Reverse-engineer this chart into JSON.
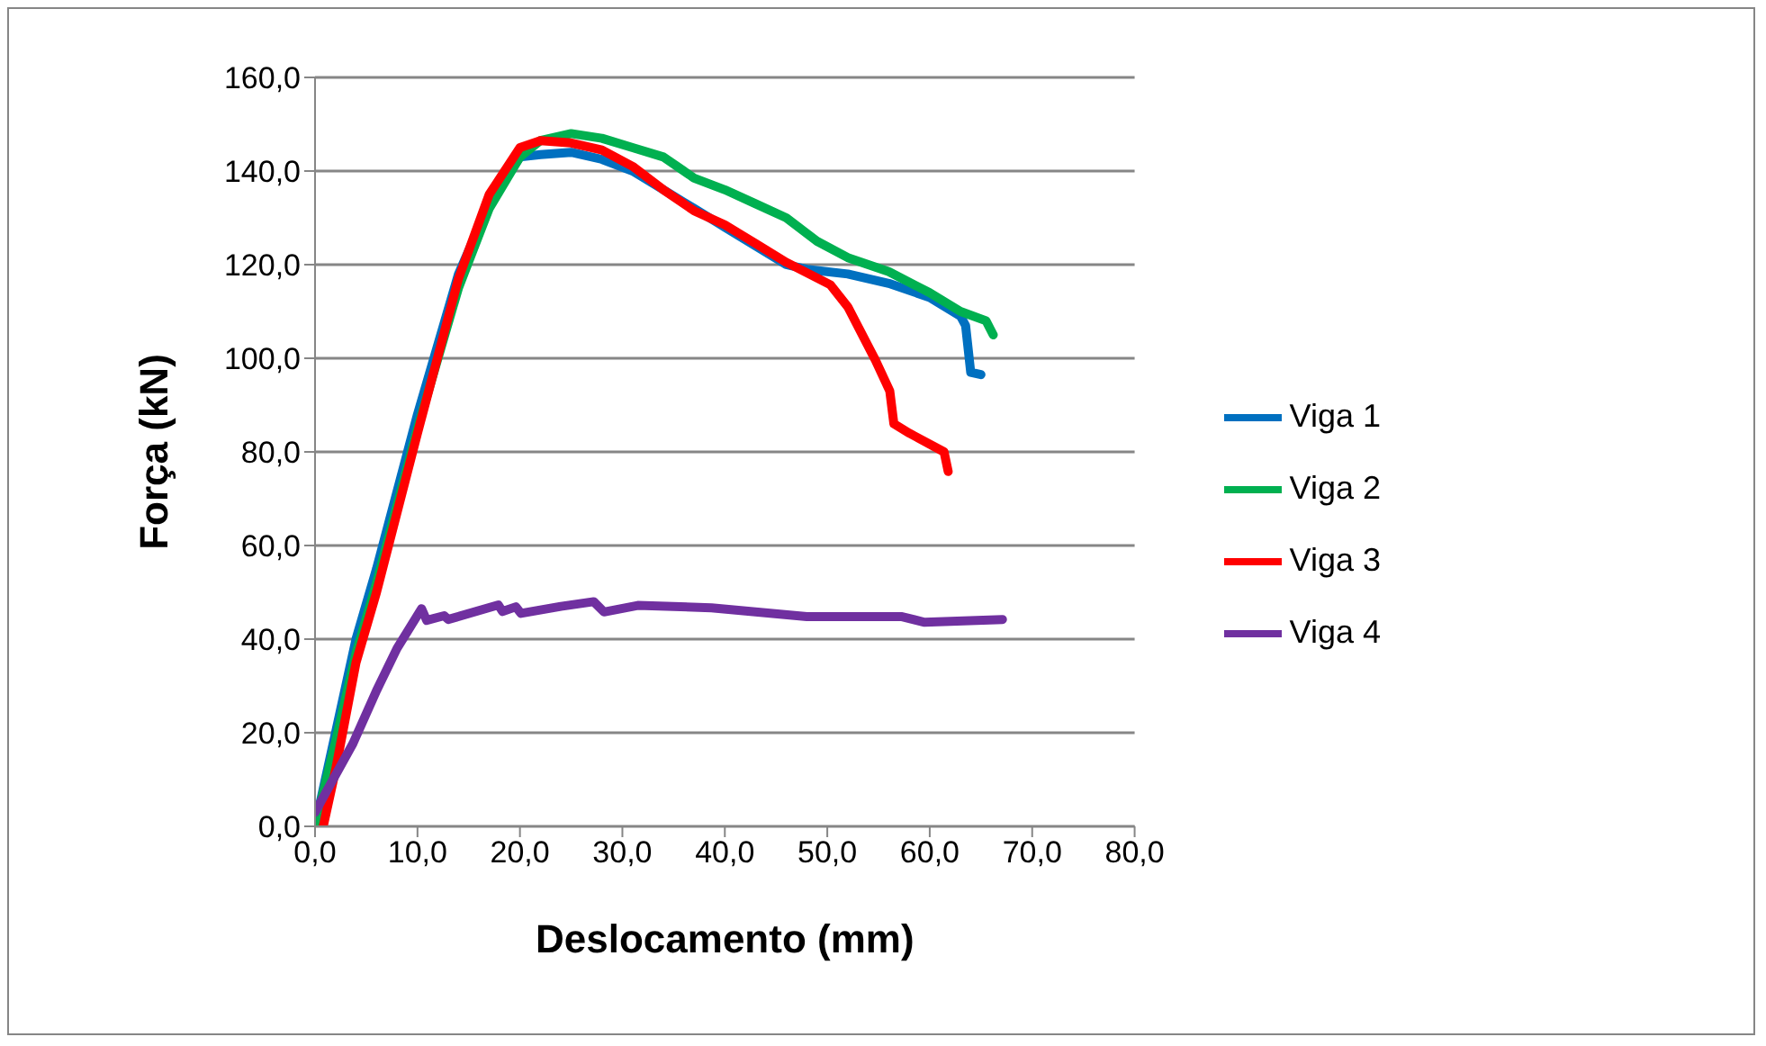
{
  "chart_data": {
    "type": "line",
    "xlabel": "Deslocamento (mm)",
    "ylabel": "Força (kN)",
    "xlim": [
      0,
      80
    ],
    "xticks": [
      {
        "value": 0,
        "label": "0,0"
      },
      {
        "value": 10,
        "label": "10,0"
      },
      {
        "value": 20,
        "label": "20,0"
      },
      {
        "value": 30,
        "label": "30,0"
      },
      {
        "value": 40,
        "label": "40,0"
      },
      {
        "value": 50,
        "label": "50,0"
      },
      {
        "value": 60,
        "label": "60,0"
      },
      {
        "value": 70,
        "label": "70,0"
      },
      {
        "value": 80,
        "label": "80,0"
      }
    ],
    "ylim": [
      0,
      160
    ],
    "yticks": [
      {
        "value": 0,
        "label": "0,0"
      },
      {
        "value": 20,
        "label": "20,0"
      },
      {
        "value": 40,
        "label": "40,0"
      },
      {
        "value": 60,
        "label": "60,0"
      },
      {
        "value": 80,
        "label": "80,0"
      },
      {
        "value": 100,
        "label": "100,0"
      },
      {
        "value": 120,
        "label": "120,0"
      },
      {
        "value": 140,
        "label": "140,0"
      },
      {
        "value": 160,
        "label": "160,0"
      }
    ],
    "grid": "y",
    "legend": "right",
    "marker": "none",
    "line_style": "solid",
    "series": [
      {
        "name": "Viga 1",
        "color": "#0070c0",
        "x": [
          0,
          2,
          4,
          6,
          10,
          14,
          17,
          20,
          22,
          25,
          28,
          31,
          34,
          37,
          40,
          43,
          46,
          48,
          52,
          56,
          60,
          63,
          63.5,
          64,
          65
        ],
        "values": [
          0,
          20,
          40,
          55,
          88,
          118,
          133,
          143,
          143.5,
          144,
          142.5,
          140,
          136,
          132,
          128,
          124,
          120,
          119,
          118,
          116,
          113,
          109,
          107,
          97,
          96.5
        ]
      },
      {
        "name": "Viga 2",
        "color": "#00b050",
        "x": [
          0,
          2,
          4,
          6,
          10,
          14,
          17,
          20,
          22,
          25,
          28,
          31,
          34,
          37,
          40,
          43,
          46,
          49,
          52,
          56,
          60,
          63,
          65.5,
          66.2
        ],
        "values": [
          0,
          18,
          37,
          52,
          85,
          115,
          132,
          143,
          146.5,
          148,
          147,
          145,
          143,
          138.5,
          136,
          133,
          130,
          125,
          121.5,
          118.5,
          114,
          110,
          108,
          105
        ]
      },
      {
        "name": "Viga 3",
        "color": "#ff0000",
        "x": [
          0.8,
          2,
          4,
          6,
          10,
          14,
          17,
          20,
          22,
          25,
          28,
          31,
          34,
          37,
          40,
          43,
          46,
          50.3,
          52,
          54.7,
          56.1,
          56.5,
          58,
          61.4,
          61.8
        ],
        "values": [
          0,
          12,
          35,
          50,
          84,
          117,
          135,
          145,
          146.5,
          146,
          144.5,
          141,
          136,
          131.5,
          128.5,
          124.5,
          120.5,
          115.7,
          111,
          99.6,
          93,
          86,
          84,
          80,
          75.8
        ]
      },
      {
        "name": "Viga 4",
        "color": "#7030a0",
        "x": [
          0,
          1,
          3.7,
          6,
          8,
          10.4,
          10.9,
          12.6,
          13,
          17.9,
          18.3,
          19.6,
          20.1,
          24,
          27.2,
          28.2,
          31.5,
          38.7,
          48,
          57.3,
          59.5,
          67.1
        ],
        "values": [
          3,
          7,
          17.7,
          29,
          38,
          46.5,
          44,
          45,
          44.2,
          47.3,
          45.9,
          46.9,
          45.5,
          47,
          48,
          45.8,
          47.2,
          46.7,
          44.8,
          44.8,
          43.6,
          44.2
        ]
      }
    ]
  }
}
